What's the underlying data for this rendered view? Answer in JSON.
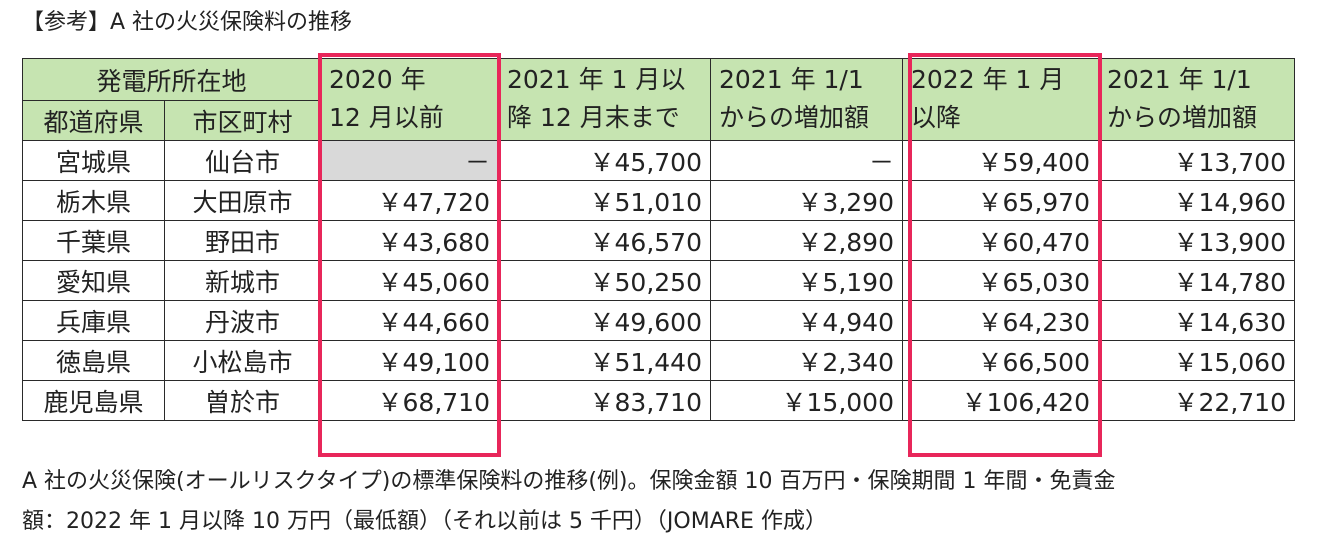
{
  "title": "【参考】A 社の火災保険料の推移",
  "header": {
    "group_label": "発電所所在地",
    "col_pref": "都道府県",
    "col_city": "市区町村",
    "col_2020": [
      "2020 年",
      "12 月以前"
    ],
    "col_2021": [
      "2021 年 1 月以",
      "降 12 月末まで"
    ],
    "col_inc1": [
      "2021 年 1/1",
      "からの増加額"
    ],
    "col_2022": [
      "2022 年 1 月",
      "以降"
    ],
    "col_inc2": [
      "2021 年 1/1",
      "からの増加額"
    ]
  },
  "rows": [
    {
      "pref": "宮城県",
      "city": "仙台市",
      "p2020": "－",
      "p2021": "￥45,700",
      "inc1": "－",
      "p2022": "￥59,400",
      "inc2": "￥13,700"
    },
    {
      "pref": "栃木県",
      "city": "大田原市",
      "p2020": "￥47,720",
      "p2021": "￥51,010",
      "inc1": "￥3,290",
      "p2022": "￥65,970",
      "inc2": "￥14,960"
    },
    {
      "pref": "千葉県",
      "city": "野田市",
      "p2020": "￥43,680",
      "p2021": "￥46,570",
      "inc1": "￥2,890",
      "p2022": "￥60,470",
      "inc2": "￥13,900"
    },
    {
      "pref": "愛知県",
      "city": "新城市",
      "p2020": "￥45,060",
      "p2021": "￥50,250",
      "inc1": "￥5,190",
      "p2022": "￥65,030",
      "inc2": "￥14,780"
    },
    {
      "pref": "兵庫県",
      "city": "丹波市",
      "p2020": "￥44,660",
      "p2021": "￥49,600",
      "inc1": "￥4,940",
      "p2022": "￥64,230",
      "inc2": "￥14,630"
    },
    {
      "pref": "徳島県",
      "city": "小松島市",
      "p2020": "￥49,100",
      "p2021": "￥51,440",
      "inc1": "￥2,340",
      "p2022": "￥66,500",
      "inc2": "￥15,060"
    },
    {
      "pref": "鹿児島県",
      "city": "曽於市",
      "p2020": "￥68,710",
      "p2021": "￥83,710",
      "inc1": "￥15,000",
      "p2022": "￥106,420",
      "inc2": "￥22,710"
    }
  ],
  "note_lines": [
    "A 社の火災保険(オールリスクタイプ)の標準保険料の推移(例)。保険金額 10 百万円・保険期間 1 年間・免責金",
    "額：2022 年 1 月以降 10 万円（最低額）（それ以前は 5 千円）（JOMARE 作成）"
  ],
  "colors": {
    "header_bg": "#c6e4b1",
    "highlight": "#e8265a",
    "empty_cell": "#d9d9d9"
  }
}
